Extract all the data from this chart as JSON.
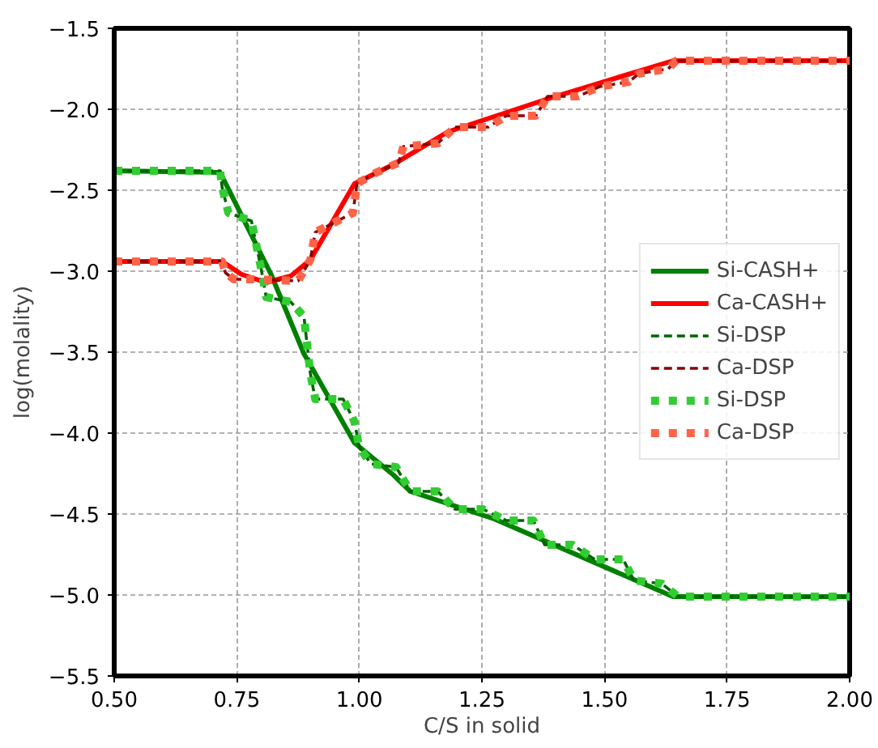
{
  "chart_data": {
    "type": "line",
    "xlabel": "C/S in solid",
    "ylabel": "log(molality)",
    "xlim": [
      0.5,
      2.0
    ],
    "ylim": [
      -5.5,
      -1.5
    ],
    "xticks": [
      {
        "value": 0.5,
        "label": "0.50"
      },
      {
        "value": 0.75,
        "label": "0.75"
      },
      {
        "value": 1.0,
        "label": "1.00"
      },
      {
        "value": 1.25,
        "label": "1.25"
      },
      {
        "value": 1.5,
        "label": "1.50"
      },
      {
        "value": 1.75,
        "label": "1.75"
      },
      {
        "value": 2.0,
        "label": "2.00"
      }
    ],
    "yticks": [
      {
        "value": -5.5,
        "label": "−5.5"
      },
      {
        "value": -5.0,
        "label": "−5.0"
      },
      {
        "value": -4.5,
        "label": "−4.5"
      },
      {
        "value": -4.0,
        "label": "−4.0"
      },
      {
        "value": -3.5,
        "label": "−3.5"
      },
      {
        "value": -3.0,
        "label": "−3.0"
      },
      {
        "value": -2.5,
        "label": "−2.5"
      },
      {
        "value": -2.0,
        "label": "−2.0"
      },
      {
        "value": -1.5,
        "label": "−1.5"
      }
    ],
    "grid": true,
    "legend": "right",
    "series": [
      {
        "name": "Si-CASH+",
        "color": "#008000",
        "line_style": "solid",
        "x": [
          0.5,
          0.716,
          0.82,
          0.887,
          0.99,
          1.07,
          1.104,
          1.275,
          1.64,
          2.0
        ],
        "values": [
          -2.38,
          -2.39,
          -3.02,
          -3.51,
          -4.06,
          -4.26,
          -4.36,
          -4.53,
          -5.01,
          -5.01
        ]
      },
      {
        "name": "Ca-CASH+",
        "color": "#ff0000",
        "line_style": "solid",
        "x": [
          0.5,
          0.72,
          0.76,
          0.81,
          0.86,
          0.9,
          0.99,
          1.07,
          1.18,
          1.39,
          1.64,
          2.0
        ],
        "values": [
          -2.94,
          -2.94,
          -3.02,
          -3.07,
          -3.03,
          -2.93,
          -2.46,
          -2.34,
          -2.14,
          -1.93,
          -1.7,
          -1.7
        ]
      },
      {
        "name": "Si-DSP",
        "color": "#006400",
        "line_style": "dashed",
        "x": [
          0.5,
          0.716,
          0.72,
          0.733,
          0.78,
          0.8,
          0.81,
          0.86,
          0.887,
          0.9,
          0.91,
          0.967,
          0.99,
          1.0,
          1.024,
          1.075,
          1.104,
          1.16,
          1.195,
          1.252,
          1.3,
          1.355,
          1.378,
          1.435,
          1.48,
          1.538,
          1.56,
          1.617,
          1.65,
          2.0
        ],
        "values": [
          -2.38,
          -2.38,
          -2.48,
          -2.64,
          -2.69,
          -2.99,
          -3.16,
          -3.19,
          -3.28,
          -3.63,
          -3.79,
          -3.79,
          -3.93,
          -4.09,
          -4.19,
          -4.21,
          -4.36,
          -4.36,
          -4.47,
          -4.47,
          -4.54,
          -4.54,
          -4.69,
          -4.69,
          -4.78,
          -4.78,
          -4.91,
          -4.93,
          -5.01,
          -5.01
        ]
      },
      {
        "name": "Ca-DSP",
        "color": "#8b0000",
        "line_style": "dashed",
        "x": [
          0.5,
          0.72,
          0.727,
          0.744,
          0.784,
          0.875,
          0.9,
          0.91,
          0.955,
          0.987,
          0.995,
          1.035,
          1.08,
          1.09,
          1.16,
          1.195,
          1.263,
          1.3,
          1.36,
          1.384,
          1.446,
          1.49,
          1.55,
          1.57,
          1.63,
          1.646,
          2.0
        ],
        "values": [
          -2.94,
          -2.94,
          -3.01,
          -3.05,
          -3.05,
          -3.06,
          -2.93,
          -2.76,
          -2.69,
          -2.64,
          -2.46,
          -2.39,
          -2.33,
          -2.23,
          -2.21,
          -2.11,
          -2.11,
          -2.04,
          -2.04,
          -1.92,
          -1.92,
          -1.86,
          -1.83,
          -1.78,
          -1.75,
          -1.7,
          -1.7
        ]
      },
      {
        "name": "Si-DSP",
        "color": "#32cd32",
        "line_style": "dotted",
        "x": [
          0.5,
          0.716,
          0.72,
          0.733,
          0.78,
          0.8,
          0.81,
          0.86,
          0.887,
          0.9,
          0.91,
          0.967,
          0.99,
          1.0,
          1.024,
          1.075,
          1.104,
          1.16,
          1.195,
          1.252,
          1.3,
          1.355,
          1.378,
          1.435,
          1.48,
          1.538,
          1.56,
          1.617,
          1.65,
          2.0
        ],
        "values": [
          -2.38,
          -2.38,
          -2.48,
          -2.64,
          -2.69,
          -2.99,
          -3.16,
          -3.19,
          -3.28,
          -3.63,
          -3.79,
          -3.79,
          -3.93,
          -4.09,
          -4.19,
          -4.21,
          -4.36,
          -4.36,
          -4.47,
          -4.47,
          -4.54,
          -4.54,
          -4.69,
          -4.69,
          -4.78,
          -4.78,
          -4.91,
          -4.93,
          -5.01,
          -5.01
        ]
      },
      {
        "name": "Ca-DSP",
        "color": "#ff6347",
        "line_style": "dotted",
        "x": [
          0.5,
          0.72,
          0.727,
          0.744,
          0.784,
          0.875,
          0.9,
          0.91,
          0.955,
          0.987,
          0.995,
          1.035,
          1.08,
          1.09,
          1.16,
          1.195,
          1.263,
          1.3,
          1.36,
          1.384,
          1.446,
          1.49,
          1.55,
          1.57,
          1.63,
          1.646,
          2.0
        ],
        "values": [
          -2.94,
          -2.94,
          -3.01,
          -3.05,
          -3.05,
          -3.06,
          -2.93,
          -2.76,
          -2.69,
          -2.64,
          -2.46,
          -2.39,
          -2.33,
          -2.23,
          -2.21,
          -2.11,
          -2.11,
          -2.04,
          -2.04,
          -1.92,
          -1.92,
          -1.86,
          -1.83,
          -1.78,
          -1.75,
          -1.7,
          -1.7
        ]
      }
    ]
  }
}
